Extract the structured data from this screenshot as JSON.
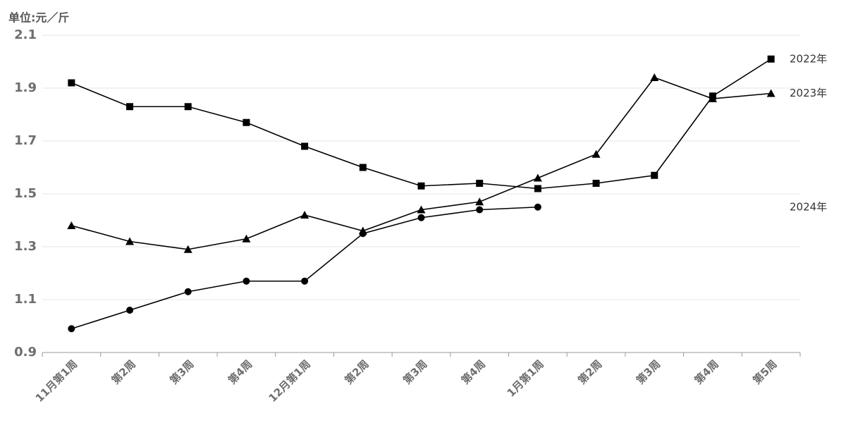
{
  "chart_data": {
    "type": "line",
    "y_axis_label": "单位:元／斤",
    "categories": [
      "11月第1周",
      "第2周",
      "第3周",
      "第4周",
      "12月第1周",
      "第2周",
      "第3周",
      "第4周",
      "1月第1周",
      "第2周",
      "第3周",
      "第4周",
      "第5周"
    ],
    "series": [
      {
        "name": "2022年",
        "color": "#000000",
        "marker": "square",
        "values": [
          1.92,
          1.83,
          1.83,
          1.77,
          1.68,
          1.6,
          1.53,
          1.54,
          1.52,
          1.54,
          1.57,
          1.87,
          2.01
        ]
      },
      {
        "name": "2023年",
        "color": "#000000",
        "marker": "triangle",
        "values": [
          1.38,
          1.32,
          1.29,
          1.33,
          1.42,
          1.36,
          1.44,
          1.47,
          1.56,
          1.65,
          1.94,
          1.86,
          1.88
        ]
      },
      {
        "name": "2024年",
        "color": "#000000",
        "marker": "circle",
        "values": [
          0.99,
          1.06,
          1.13,
          1.17,
          1.17,
          1.35,
          1.41,
          1.44,
          1.45,
          null,
          null,
          null,
          null
        ]
      }
    ],
    "ylim": [
      0.9,
      2.1
    ],
    "yticks": [
      0.9,
      1.1,
      1.3,
      1.5,
      1.7,
      1.9,
      2.1
    ],
    "grid": true
  }
}
